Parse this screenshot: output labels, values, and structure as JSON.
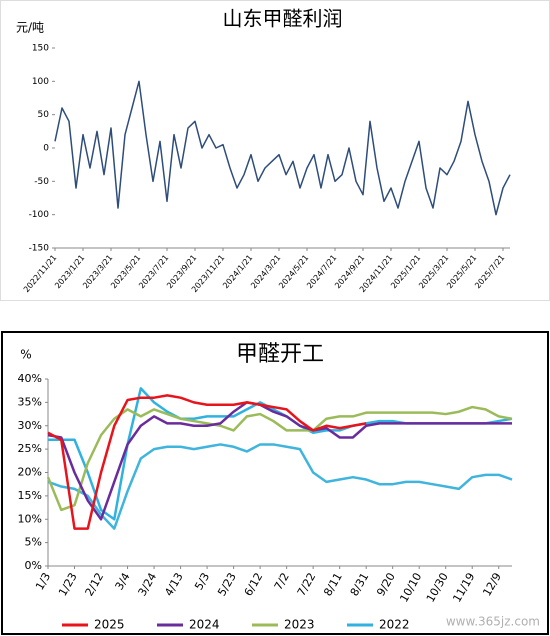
{
  "chart_data": [
    {
      "type": "line",
      "title": "山东甲醛利润",
      "y_label": "元/吨",
      "categories": [
        "2022/11/21",
        null,
        null,
        null,
        "2023/1/21",
        null,
        null,
        null,
        "2023/3/21",
        null,
        null,
        null,
        "2023/5/21",
        null,
        null,
        null,
        "2023/7/21",
        null,
        null,
        null,
        "2023/9/21",
        null,
        null,
        null,
        "2023/11/21",
        null,
        null,
        null,
        "2024/1/21",
        null,
        null,
        null,
        "2024/3/21",
        null,
        null,
        null,
        "2024/5/21",
        null,
        null,
        null,
        "2024/7/21",
        null,
        null,
        null,
        "2024/9/21",
        null,
        null,
        null,
        "2024/11/21",
        null,
        null,
        null,
        "2025/1/21",
        null,
        null,
        null,
        "2025/3/21",
        null,
        null,
        null,
        "2025/5/21",
        null,
        null,
        null,
        "2025/7/21",
        null
      ],
      "series": [
        {
          "color": "#2e4d7b",
          "values": [
            10,
            60,
            40,
            -60,
            20,
            -30,
            25,
            -40,
            30,
            -90,
            20,
            60,
            100,
            20,
            -50,
            10,
            -80,
            20,
            -30,
            30,
            40,
            0,
            20,
            0,
            5,
            -30,
            -60,
            -40,
            -10,
            -50,
            -30,
            -20,
            -10,
            -40,
            -20,
            -60,
            -30,
            -10,
            -60,
            -10,
            -50,
            -40,
            0,
            -50,
            -70,
            40,
            -30,
            -80,
            -60,
            -90,
            -50,
            -20,
            10,
            -60,
            -90,
            -30,
            -40,
            -20,
            10,
            70,
            20,
            -20,
            -50,
            -100,
            -60,
            -40
          ]
        }
      ],
      "ylim": [
        -150,
        150
      ],
      "yticks": [
        -150,
        -100,
        -50,
        0,
        50,
        100,
        150
      ],
      "grid": false
    },
    {
      "type": "line",
      "title": "甲醛开工",
      "y_label": "%",
      "categories": [
        "1/3",
        null,
        "1/23",
        null,
        "2/12",
        null,
        "3/4",
        null,
        "3/24",
        null,
        "4/13",
        null,
        "5/3",
        null,
        "5/23",
        null,
        "6/12",
        null,
        "7/2",
        null,
        "7/22",
        null,
        "8/11",
        null,
        "8/31",
        null,
        "9/20",
        null,
        "10/10",
        null,
        "10/30",
        null,
        "11/19",
        null,
        "12/9",
        null
      ],
      "series": [
        {
          "color": "#3fb4dc",
          "values": [
            18,
            17,
            16.5,
            15,
            11,
            8,
            16,
            23,
            25,
            25.5,
            25.5,
            25,
            25.5,
            26,
            25.5,
            24.5,
            26,
            26,
            25.5,
            25,
            20,
            18,
            18.5,
            19,
            18.5,
            17.5,
            17.5,
            18,
            18,
            17.5,
            17,
            16.5,
            19,
            19.5,
            19.5,
            18.5
          ]
        },
        {
          "name": "2022",
          "color": "#2fb2e0",
          "values": [
            27,
            27,
            27,
            20,
            12,
            10,
            26,
            38,
            35,
            33,
            31.5,
            31.5,
            32,
            32,
            32,
            33.5,
            35,
            33.5,
            32,
            30,
            28.5,
            29,
            29,
            30,
            30.5,
            31,
            31,
            30.5,
            30.5,
            30.5,
            30.5,
            30.5,
            30.5,
            30.5,
            31,
            31.5
          ]
        },
        {
          "name": "2023",
          "color": "#9bbb59",
          "values": [
            19,
            12,
            13,
            22,
            28,
            31.5,
            33.5,
            32,
            33.5,
            32.5,
            31.5,
            31,
            30.5,
            30,
            29,
            32,
            32.5,
            31,
            29,
            29,
            29,
            31.5,
            32,
            32,
            32.8,
            32.8,
            32.8,
            32.8,
            32.8,
            32.8,
            32.5,
            33,
            34,
            33.5,
            32,
            31.5
          ]
        },
        {
          "name": "2024",
          "color": "#6a2c9c",
          "values": [
            28,
            27.5,
            20,
            14,
            10,
            18,
            26,
            30,
            32,
            30.5,
            30.5,
            30,
            30,
            30.5,
            33,
            35,
            34.5,
            33,
            32,
            30,
            29,
            29.5,
            27.5,
            27.5,
            30,
            30.5,
            30.5,
            30.5,
            30.5,
            30.5,
            30.5,
            30.5,
            30.5,
            30.5,
            30.5,
            30.5
          ]
        },
        {
          "name": "2025",
          "color": "#e8141b",
          "values": [
            28.5,
            27,
            8,
            8,
            20,
            30,
            35.5,
            36,
            36,
            36.5,
            36,
            35,
            34.5,
            34.5,
            34.5,
            35,
            34.5,
            34,
            33.5,
            31,
            29,
            30,
            29.5,
            30,
            30.5,
            null,
            null,
            null,
            null,
            null,
            null,
            null,
            null,
            null,
            null,
            null
          ]
        }
      ],
      "legend_order": [
        4,
        3,
        2,
        1
      ],
      "ylim": [
        0,
        40
      ],
      "yticks": [
        {
          "value": 0,
          "label": "0%"
        },
        {
          "value": 5,
          "label": "5%"
        },
        {
          "value": 10,
          "label": "10%"
        },
        {
          "value": 15,
          "label": "15%"
        },
        {
          "value": 20,
          "label": "20%"
        },
        {
          "value": 25,
          "label": "25%"
        },
        {
          "value": 30,
          "label": "30%"
        },
        {
          "value": 35,
          "label": "35%"
        },
        {
          "value": 40,
          "label": "40%"
        }
      ],
      "grid": false
    }
  ],
  "watermark": "www.365jz.com"
}
